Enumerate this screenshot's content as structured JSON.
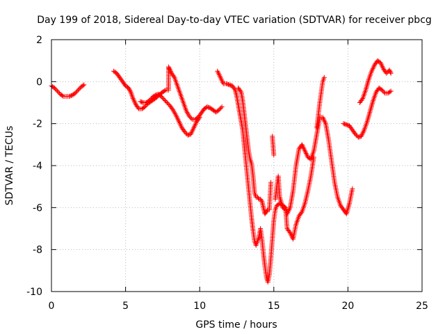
{
  "chart_data": {
    "type": "scatter",
    "title": "Day 199 of 2018, Sidereal Day-to-day VTEC variation (SDTVAR) for receiver pbcg",
    "xlabel": "GPS time / hours",
    "ylabel": "SDTVAR / TECUs",
    "xlim": [
      0,
      25
    ],
    "ylim": [
      -10,
      2
    ],
    "xticks": [
      0,
      5,
      10,
      15,
      20,
      25
    ],
    "yticks": [
      -10,
      -8,
      -6,
      -4,
      -2,
      0,
      2
    ],
    "xtick_labels": [
      "0",
      "5",
      "10",
      "15",
      "20",
      "25"
    ],
    "ytick_labels": [
      "-10",
      "-8",
      "-6",
      "-4",
      "-2",
      "0",
      "2"
    ],
    "grid": true,
    "marker": "+",
    "color": "#ff0000",
    "series": [
      {
        "points": [
          [
            0.0,
            -0.2
          ],
          [
            0.2,
            -0.3
          ],
          [
            0.4,
            -0.45
          ],
          [
            0.6,
            -0.6
          ],
          [
            0.8,
            -0.7
          ],
          [
            1.0,
            -0.7
          ],
          [
            1.2,
            -0.7
          ],
          [
            1.4,
            -0.65
          ],
          [
            1.6,
            -0.55
          ],
          [
            1.8,
            -0.4
          ],
          [
            2.0,
            -0.25
          ],
          [
            2.2,
            -0.15
          ],
          [
            4.2,
            0.5
          ],
          [
            4.4,
            0.4
          ],
          [
            4.6,
            0.2
          ],
          [
            4.8,
            0.0
          ],
          [
            5.0,
            -0.2
          ],
          [
            5.2,
            -0.3
          ],
          [
            5.35,
            -0.5
          ],
          [
            5.5,
            -0.8
          ],
          [
            5.7,
            -1.1
          ],
          [
            5.9,
            -1.3
          ],
          [
            6.1,
            -1.3
          ],
          [
            6.3,
            -1.2
          ],
          [
            6.5,
            -1.05
          ],
          [
            6.7,
            -0.95
          ],
          [
            6.9,
            -0.85
          ],
          [
            7.1,
            -0.75
          ],
          [
            7.3,
            -0.6
          ],
          [
            7.5,
            -0.5
          ],
          [
            7.7,
            -0.4
          ],
          [
            7.9,
            -0.4
          ],
          [
            7.9,
            0.7
          ],
          [
            8.0,
            0.55
          ],
          [
            8.1,
            0.4
          ],
          [
            8.3,
            0.2
          ],
          [
            8.5,
            -0.2
          ],
          [
            8.7,
            -0.6
          ],
          [
            8.9,
            -1.0
          ],
          [
            9.1,
            -1.4
          ],
          [
            9.3,
            -1.65
          ],
          [
            9.5,
            -1.8
          ],
          [
            9.7,
            -1.8
          ],
          [
            9.9,
            -1.7
          ],
          [
            10.1,
            -1.5
          ],
          [
            10.3,
            -1.3
          ],
          [
            10.5,
            -1.2
          ],
          [
            10.7,
            -1.25
          ],
          [
            10.9,
            -1.35
          ],
          [
            11.1,
            -1.45
          ],
          [
            11.3,
            -1.35
          ],
          [
            11.5,
            -1.2
          ]
        ]
      },
      {
        "points": [
          [
            6.0,
            -0.95
          ],
          [
            6.2,
            -1.0
          ],
          [
            6.4,
            -1.0
          ],
          [
            6.6,
            -0.9
          ],
          [
            6.8,
            -0.75
          ],
          [
            7.0,
            -0.65
          ],
          [
            7.2,
            -0.6
          ],
          [
            7.4,
            -0.7
          ],
          [
            7.6,
            -0.85
          ],
          [
            7.8,
            -1.0
          ],
          [
            8.0,
            -1.15
          ],
          [
            8.2,
            -1.35
          ],
          [
            8.4,
            -1.6
          ],
          [
            8.6,
            -1.9
          ],
          [
            8.8,
            -2.2
          ],
          [
            9.0,
            -2.4
          ],
          [
            9.2,
            -2.55
          ],
          [
            9.4,
            -2.5
          ],
          [
            9.6,
            -2.2
          ],
          [
            9.8,
            -1.9
          ],
          [
            10.0,
            -1.7
          ]
        ]
      },
      {
        "points": [
          [
            11.2,
            0.5
          ],
          [
            11.4,
            0.2
          ],
          [
            11.6,
            -0.1
          ],
          [
            11.8,
            -0.1
          ],
          [
            12.0,
            -0.15
          ],
          [
            12.2,
            -0.2
          ],
          [
            12.4,
            -0.4
          ],
          [
            12.5,
            -0.7
          ],
          [
            12.6,
            -1.1
          ],
          [
            12.7,
            -1.5
          ],
          [
            12.8,
            -1.9
          ],
          [
            12.9,
            -2.3
          ],
          [
            13.0,
            -3.0
          ],
          [
            13.1,
            -3.7
          ],
          [
            13.2,
            -4.4
          ],
          [
            13.3,
            -5.1
          ],
          [
            13.4,
            -5.8
          ],
          [
            13.5,
            -6.5
          ],
          [
            13.6,
            -7.1
          ],
          [
            13.7,
            -7.6
          ],
          [
            13.8,
            -7.8
          ],
          [
            13.9,
            -7.6
          ],
          [
            14.0,
            -7.4
          ],
          [
            14.1,
            -7.0
          ],
          [
            14.2,
            -7.5
          ],
          [
            14.3,
            -8.2
          ],
          [
            14.4,
            -8.8
          ],
          [
            14.5,
            -9.3
          ],
          [
            14.6,
            -9.55
          ],
          [
            14.7,
            -9.2
          ],
          [
            14.8,
            -8.4
          ],
          [
            14.9,
            -7.5
          ],
          [
            15.0,
            -6.6
          ],
          [
            15.1,
            -6.1
          ],
          [
            15.2,
            -5.9
          ],
          [
            15.4,
            -5.8
          ],
          [
            15.6,
            -5.9
          ],
          [
            15.8,
            -6.0
          ],
          [
            15.9,
            -6.3
          ],
          [
            16.1,
            -6.0
          ],
          [
            16.3,
            -5.2
          ],
          [
            16.5,
            -4.0
          ],
          [
            16.7,
            -3.2
          ],
          [
            16.9,
            -3.0
          ],
          [
            17.1,
            -3.3
          ],
          [
            17.3,
            -3.6
          ],
          [
            17.5,
            -3.7
          ],
          [
            17.7,
            -3.3
          ],
          [
            17.9,
            -2.5
          ],
          [
            18.1,
            -1.7
          ],
          [
            18.3,
            -1.7
          ],
          [
            18.5,
            -2.0
          ],
          [
            18.7,
            -2.8
          ],
          [
            18.9,
            -3.8
          ],
          [
            19.1,
            -4.8
          ],
          [
            19.3,
            -5.5
          ],
          [
            19.5,
            -5.9
          ],
          [
            19.7,
            -6.1
          ],
          [
            19.9,
            -6.3
          ],
          [
            20.1,
            -5.8
          ],
          [
            20.3,
            -5.1
          ]
        ]
      },
      {
        "points": [
          [
            12.6,
            -0.3
          ],
          [
            12.8,
            -0.5
          ],
          [
            12.9,
            -0.9
          ],
          [
            13.0,
            -1.5
          ],
          [
            13.1,
            -2.1
          ],
          [
            13.2,
            -2.7
          ],
          [
            13.3,
            -3.3
          ],
          [
            13.4,
            -3.7
          ],
          [
            13.5,
            -3.9
          ],
          [
            13.6,
            -4.5
          ],
          [
            13.7,
            -5.3
          ],
          [
            13.8,
            -5.5
          ],
          [
            13.9,
            -5.5
          ],
          [
            14.0,
            -5.6
          ],
          [
            14.1,
            -5.6
          ],
          [
            14.2,
            -5.7
          ],
          [
            14.3,
            -6.0
          ],
          [
            14.4,
            -6.3
          ],
          [
            14.5,
            -6.2
          ],
          [
            14.6,
            -6.1
          ],
          [
            14.7,
            -6.1
          ],
          [
            14.8,
            -4.8
          ],
          [
            14.9,
            -2.6
          ],
          [
            15.0,
            -3.5
          ],
          [
            15.1,
            -5.6
          ],
          [
            15.2,
            -5.0
          ],
          [
            15.3,
            -4.5
          ],
          [
            15.4,
            -5.5
          ],
          [
            15.6,
            -6.0
          ],
          [
            15.8,
            -6.1
          ],
          [
            15.9,
            -7.0
          ],
          [
            16.1,
            -7.2
          ],
          [
            16.3,
            -7.5
          ],
          [
            16.5,
            -6.8
          ],
          [
            16.7,
            -6.4
          ],
          [
            16.9,
            -6.2
          ],
          [
            17.1,
            -5.8
          ],
          [
            17.3,
            -5.2
          ],
          [
            17.5,
            -4.5
          ],
          [
            17.7,
            -3.6
          ],
          [
            17.9,
            -2.2
          ],
          [
            18.1,
            -1.0
          ],
          [
            18.3,
            0.0
          ],
          [
            18.4,
            0.2
          ]
        ]
      },
      {
        "points": [
          [
            19.7,
            -2.0
          ],
          [
            19.9,
            -2.05
          ],
          [
            20.1,
            -2.1
          ],
          [
            20.3,
            -2.3
          ],
          [
            20.5,
            -2.5
          ],
          [
            20.7,
            -2.65
          ],
          [
            20.9,
            -2.6
          ],
          [
            21.1,
            -2.3
          ],
          [
            21.3,
            -1.9
          ],
          [
            21.5,
            -1.4
          ],
          [
            21.7,
            -0.9
          ],
          [
            21.9,
            -0.5
          ],
          [
            22.1,
            -0.3
          ],
          [
            22.3,
            -0.4
          ],
          [
            22.5,
            -0.55
          ],
          [
            22.7,
            -0.55
          ],
          [
            22.9,
            -0.45
          ]
        ]
      },
      {
        "points": [
          [
            20.8,
            -1.0
          ],
          [
            21.0,
            -0.8
          ],
          [
            21.2,
            -0.4
          ],
          [
            21.4,
            0.1
          ],
          [
            21.6,
            0.5
          ],
          [
            21.8,
            0.8
          ],
          [
            22.0,
            1.0
          ],
          [
            22.2,
            0.9
          ],
          [
            22.4,
            0.6
          ],
          [
            22.6,
            0.4
          ],
          [
            22.8,
            0.55
          ],
          [
            22.9,
            0.4
          ]
        ]
      }
    ]
  }
}
